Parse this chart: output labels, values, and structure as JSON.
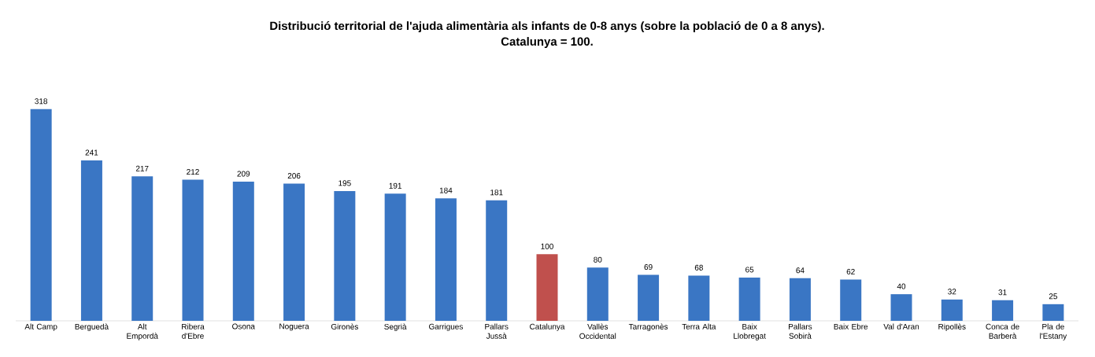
{
  "chart_data": {
    "type": "bar",
    "title": "Distribució territorial de l'ajuda alimentària als infants de 0-8 anys (sobre la població de 0 a 8 anys).\nCatalunya = 100.",
    "categories": [
      "Alt Camp",
      "Berguedà",
      "Alt Empordà",
      "Ribera d'Ebre",
      "Osona",
      "Noguera",
      "Gironès",
      "Segrià",
      "Garrigues",
      "Pallars Jussà",
      "Catalunya",
      "Vallès Occidental",
      "Tarragonès",
      "Terra Alta",
      "Baix Llobregat",
      "Pallars Sobirà",
      "Baix Ebre",
      "Val d'Aran",
      "Ripollès",
      "Conca de Barberà",
      "Pla de l'Estany"
    ],
    "values": [
      318,
      241,
      217,
      212,
      209,
      206,
      195,
      191,
      184,
      181,
      100,
      80,
      69,
      68,
      65,
      64,
      62,
      40,
      32,
      31,
      25
    ],
    "colors": [
      "#3a76c4",
      "#3a76c4",
      "#3a76c4",
      "#3a76c4",
      "#3a76c4",
      "#3a76c4",
      "#3a76c4",
      "#3a76c4",
      "#3a76c4",
      "#3a76c4",
      "#c0504d",
      "#3a76c4",
      "#3a76c4",
      "#3a76c4",
      "#3a76c4",
      "#3a76c4",
      "#3a76c4",
      "#3a76c4",
      "#3a76c4",
      "#3a76c4",
      "#3a76c4"
    ],
    "data_labels": true
  }
}
